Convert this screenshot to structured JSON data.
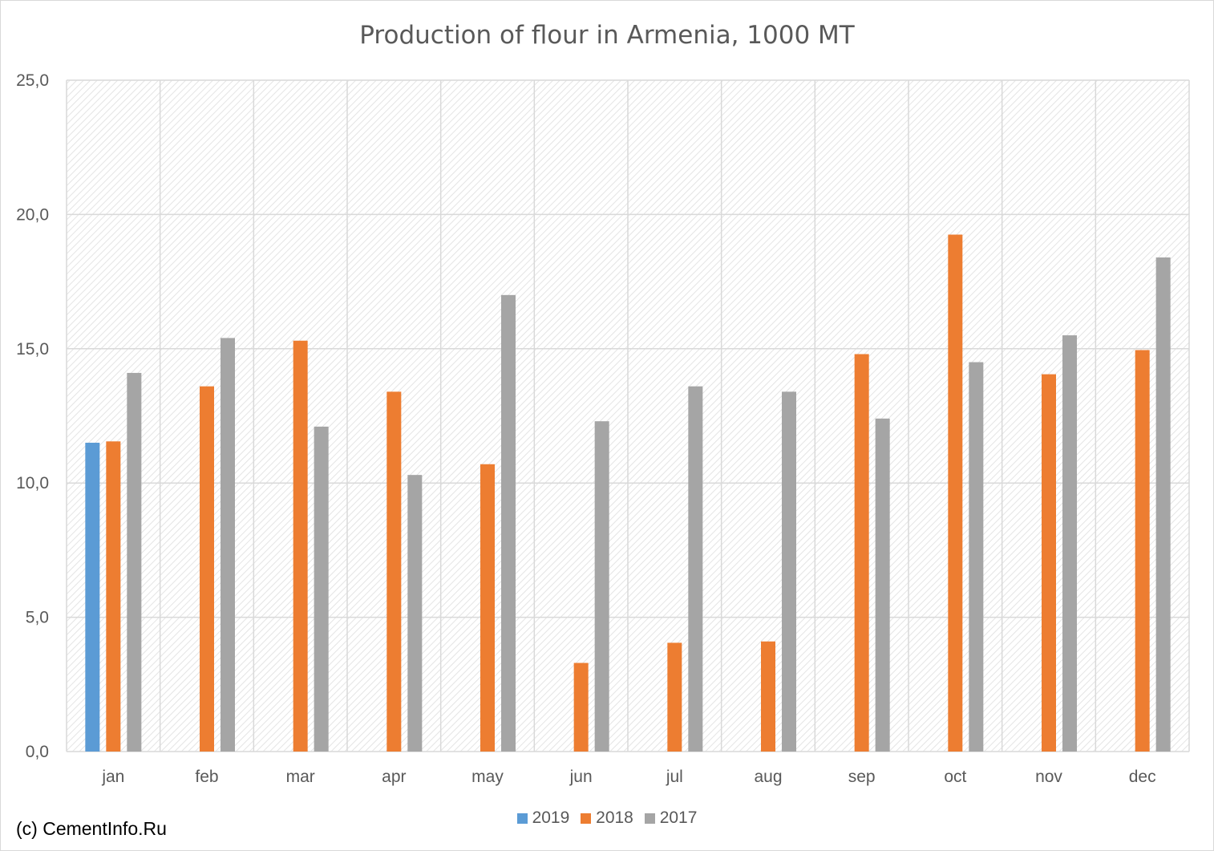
{
  "credit": "(c) CementInfo.Ru",
  "colors": {
    "2019": "#5b9bd5",
    "2018": "#ed7d31",
    "2017": "#a5a5a5",
    "grid": "#d9d9d9",
    "text": "#595959"
  },
  "chart_data": {
    "type": "bar",
    "title": "Production of flour in Armenia, 1000 MT",
    "categories": [
      "jan",
      "feb",
      "mar",
      "apr",
      "may",
      "jun",
      "jul",
      "aug",
      "sep",
      "oct",
      "nov",
      "dec"
    ],
    "series": [
      {
        "name": "2019",
        "values": [
          11.5,
          null,
          null,
          null,
          null,
          null,
          null,
          null,
          null,
          null,
          null,
          null
        ]
      },
      {
        "name": "2018",
        "values": [
          11.55,
          13.6,
          15.3,
          13.4,
          10.7,
          3.3,
          4.05,
          4.1,
          14.8,
          19.25,
          14.05,
          14.95
        ]
      },
      {
        "name": "2017",
        "values": [
          14.1,
          15.4,
          12.1,
          10.3,
          17.0,
          12.3,
          13.6,
          13.4,
          12.4,
          14.5,
          15.5,
          18.4
        ]
      }
    ],
    "yticks": [
      "0,0",
      "5,0",
      "10,0",
      "15,0",
      "20,0",
      "25,0"
    ],
    "ylim": [
      0,
      25
    ],
    "grid": true,
    "legend": "bottom"
  }
}
